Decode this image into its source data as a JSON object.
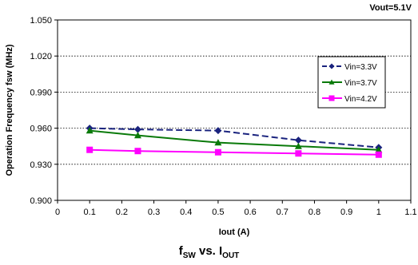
{
  "chart_data": {
    "type": "line",
    "title": "",
    "annotation": "Vout=5.1V",
    "caption": {
      "parts": [
        {
          "text": "f",
          "sub": false
        },
        {
          "text": "SW",
          "sub": true
        },
        {
          "text": " vs. I",
          "sub": false
        },
        {
          "text": "OUT",
          "sub": true
        }
      ]
    },
    "xlabel": "Iout (A)",
    "ylabel": "Operation Frequency fsw (MHz)",
    "xlim": [
      0,
      1.1
    ],
    "ylim": [
      0.9,
      1.05
    ],
    "xticks": [
      "0",
      "0.1",
      "0.2",
      "0.3",
      "0.4",
      "0.5",
      "0.6",
      "0.7",
      "0.8",
      "0.9",
      "1",
      "1.1"
    ],
    "yticks": [
      "0.900",
      "0.930",
      "0.960",
      "0.990",
      "1.020",
      "1.050"
    ],
    "grid": "horizontal dotted",
    "legend_position": "right",
    "series": [
      {
        "name": "Vin=3.3V",
        "color": "#1a237e",
        "marker": "diamond",
        "dash": true,
        "x": [
          0.1,
          0.25,
          0.5,
          0.75,
          1.0
        ],
        "y": [
          0.96,
          0.959,
          0.958,
          0.95,
          0.944
        ]
      },
      {
        "name": "Vin=3.7V",
        "color": "#0a7a0a",
        "marker": "triangle",
        "dash": false,
        "x": [
          0.1,
          0.25,
          0.5,
          0.75,
          1.0
        ],
        "y": [
          0.958,
          0.954,
          0.948,
          0.945,
          0.942
        ]
      },
      {
        "name": "Vin=4.2V",
        "color": "#ff00ff",
        "marker": "square",
        "dash": false,
        "x": [
          0.1,
          0.25,
          0.5,
          0.75,
          1.0
        ],
        "y": [
          0.942,
          0.941,
          0.94,
          0.939,
          0.938
        ]
      }
    ]
  }
}
